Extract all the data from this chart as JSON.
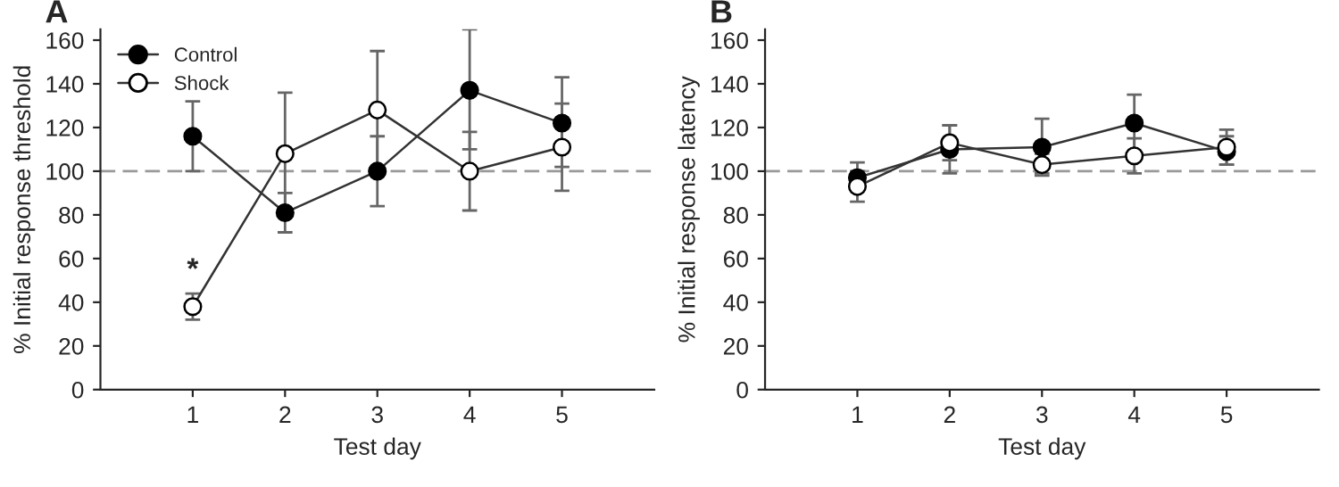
{
  "chart_data": [
    {
      "type": "line",
      "title": "A",
      "xlabel": "Test day",
      "ylabel": "% Initial response threshold",
      "x": [
        1,
        2,
        3,
        4,
        5
      ],
      "xlim": [
        0,
        6
      ],
      "xticks": [
        1,
        2,
        3,
        4,
        5
      ],
      "ylim": [
        0,
        165
      ],
      "yticks": [
        0,
        20,
        40,
        60,
        80,
        100,
        120,
        140,
        160
      ],
      "grid": false,
      "legend": "top left",
      "marker": "circle",
      "line_style": "solid",
      "series": [
        {
          "name": "Control",
          "color": "#000000",
          "values": [
            116,
            81,
            100,
            137,
            122
          ],
          "errors": [
            [
              100,
              132
            ],
            [
              72,
              90
            ],
            [
              84,
              116
            ],
            [
              110,
              165
            ],
            [
              102,
              143
            ]
          ]
        },
        {
          "name": "Shock",
          "color": "#ffffff",
          "values": [
            38,
            108,
            128,
            100,
            111
          ],
          "errors": [
            [
              32,
              44
            ],
            [
              80,
              136
            ],
            [
              101,
              155
            ],
            [
              82,
              118
            ],
            [
              91,
              131
            ]
          ]
        }
      ],
      "ref_lines": [
        {
          "axis": "y",
          "value": 100,
          "color": "#999999",
          "line_style": "dashed"
        }
      ],
      "annotations": [
        {
          "text": "*",
          "x": 1,
          "y": 48
        }
      ]
    },
    {
      "type": "line",
      "title": "B",
      "xlabel": "Test day",
      "ylabel": "% Initial response latency",
      "x": [
        1,
        2,
        3,
        4,
        5
      ],
      "xlim": [
        0,
        6
      ],
      "xticks": [
        1,
        2,
        3,
        4,
        5
      ],
      "ylim": [
        0,
        165
      ],
      "yticks": [
        0,
        20,
        40,
        60,
        80,
        100,
        120,
        140,
        160
      ],
      "grid": false,
      "legend": false,
      "marker": "circle",
      "line_style": "solid",
      "series": [
        {
          "color": "#000000",
          "values": [
            97,
            110,
            111,
            122,
            109
          ],
          "errors": [
            [
              91,
              104
            ],
            [
              99,
              121
            ],
            [
              99,
              124
            ],
            [
              109,
              135
            ],
            [
              103,
              116
            ]
          ]
        },
        {
          "color": "#ffffff",
          "values": [
            93,
            113,
            103,
            107,
            111
          ],
          "errors": [
            [
              86,
              100
            ],
            [
              105,
              121
            ],
            [
              98,
              108
            ],
            [
              99,
              115
            ],
            [
              103,
              119
            ]
          ]
        }
      ],
      "ref_lines": [
        {
          "axis": "y",
          "value": 100,
          "color": "#999999",
          "line_style": "dashed"
        }
      ]
    }
  ]
}
